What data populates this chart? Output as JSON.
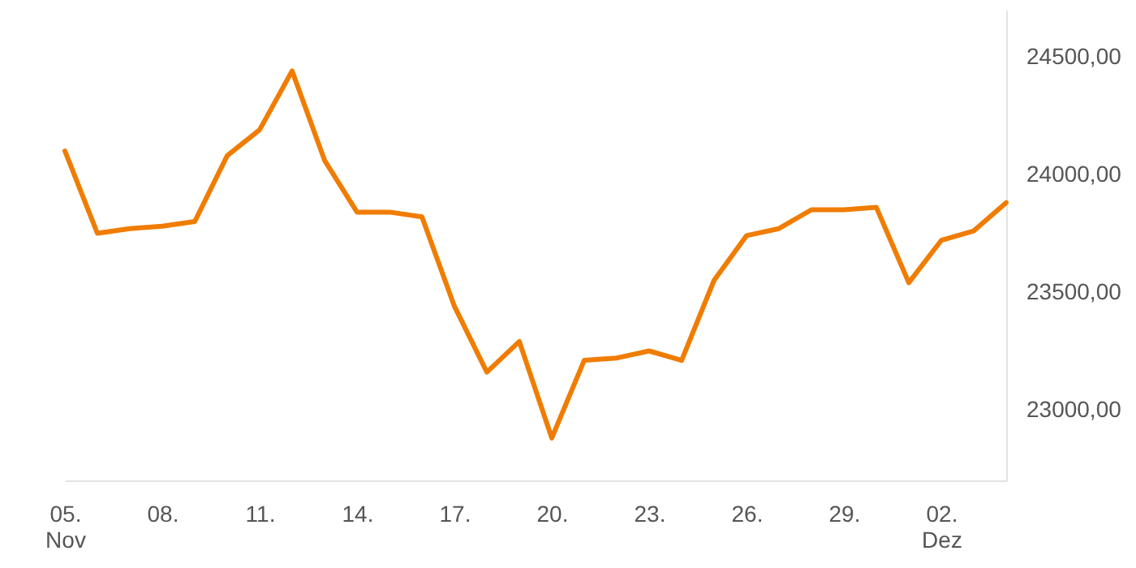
{
  "chart_data": {
    "type": "line",
    "x": [
      "--11-05",
      "--11-06",
      "--11-07",
      "--11-08",
      "--11-09",
      "--11-10",
      "--11-11",
      "--11-12",
      "--11-13",
      "--11-14",
      "--11-15",
      "--11-16",
      "--11-17",
      "--11-18",
      "--11-19",
      "--11-20",
      "--11-21",
      "--11-22",
      "--11-23",
      "--11-24",
      "--11-25",
      "--11-26",
      "--11-27",
      "--11-28",
      "--11-29",
      "--11-30",
      "--12-01",
      "--12-02",
      "--12-03",
      "--12-04"
    ],
    "series": [
      {
        "color": "#f07c00",
        "values": [
          24100,
          23750,
          23770,
          23780,
          23800,
          24080,
          24190,
          24440,
          24060,
          23840,
          23840,
          23820,
          23440,
          23160,
          23290,
          22880,
          23210,
          23220,
          23250,
          23210,
          23550,
          23740,
          23770,
          23850,
          23850,
          23860,
          23540,
          23720,
          23760,
          23880
        ]
      }
    ],
    "xlim": [
      "--11-05",
      "--12-04"
    ],
    "ylim": [
      22700,
      24700
    ],
    "xticks": [
      {
        "value": "--11-05",
        "label": "05.\nNov"
      },
      {
        "value": "--11-08",
        "label": "08."
      },
      {
        "value": "--11-11",
        "label": "11."
      },
      {
        "value": "--11-14",
        "label": "14."
      },
      {
        "value": "--11-17",
        "label": "17."
      },
      {
        "value": "--11-20",
        "label": "20."
      },
      {
        "value": "--11-23",
        "label": "23."
      },
      {
        "value": "--11-26",
        "label": "26."
      },
      {
        "value": "--11-29",
        "label": "29."
      },
      {
        "value": "--12-02",
        "label": "02.\nDez"
      }
    ],
    "yticks": [
      {
        "value": 23000,
        "label": "23000,00"
      },
      {
        "value": 23500,
        "label": "23500,00"
      },
      {
        "value": 24000,
        "label": "24000,00"
      },
      {
        "value": 24500,
        "label": "24500,00"
      }
    ],
    "grid": false,
    "marker": "none",
    "line_style": "solid"
  }
}
